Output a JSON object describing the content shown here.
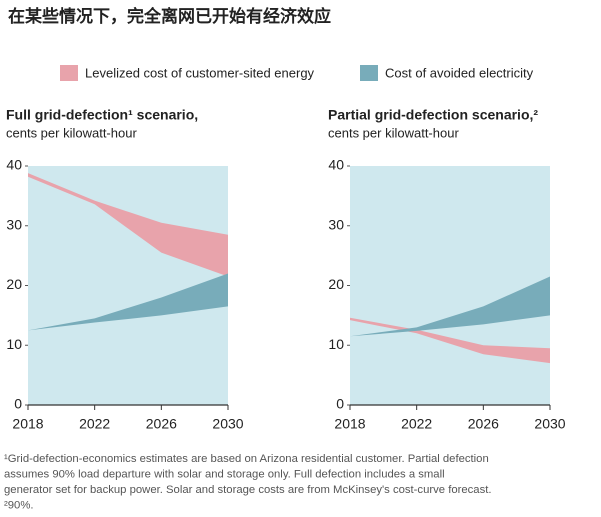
{
  "header": {
    "title": "在某些情况下，完全离网已开始有经济效应"
  },
  "chart_data": [
    {
      "type": "band",
      "title": "Full grid-defection¹ scenario,",
      "subtitle": "cents per kilowatt-hour",
      "x": [
        2018,
        2022,
        2026,
        2030
      ],
      "xlim": [
        2018,
        2030
      ],
      "xticks": [
        2018,
        2022,
        2026,
        2030
      ],
      "ylim": [
        0,
        40
      ],
      "yticks": [
        0,
        10,
        20,
        30,
        40
      ],
      "series": [
        {
          "name": "Levelized cost of customer-sited energy",
          "color": "#e8a3ab",
          "low": [
            38.2,
            33.6,
            25.5,
            21.5
          ],
          "high": [
            38.8,
            34.2,
            30.5,
            28.5
          ]
        },
        {
          "name": "Cost of avoided electricity",
          "color": "#78acba",
          "low": [
            12.5,
            13.8,
            15,
            16.5
          ],
          "high": [
            12.5,
            14.5,
            18,
            22
          ]
        }
      ]
    },
    {
      "type": "band",
      "title": "Partial grid-defection scenario,²",
      "subtitle": "cents per kilowatt-hour",
      "x": [
        2018,
        2022,
        2026,
        2030
      ],
      "xlim": [
        2018,
        2030
      ],
      "xticks": [
        2018,
        2022,
        2026,
        2030
      ],
      "ylim": [
        0,
        40
      ],
      "yticks": [
        0,
        10,
        20,
        30,
        40
      ],
      "series": [
        {
          "name": "Levelized cost of customer-sited energy",
          "color": "#e8a3ab",
          "low": [
            14.2,
            12,
            8.5,
            7
          ],
          "high": [
            14.6,
            12.6,
            10,
            9.5
          ]
        },
        {
          "name": "Cost of avoided electricity",
          "color": "#78acba",
          "low": [
            11.5,
            12.4,
            13.5,
            15
          ],
          "high": [
            11.5,
            13,
            16.5,
            21.5
          ]
        }
      ]
    }
  ],
  "footnote": [
    "¹Grid-defection-economics estimates are based on Arizona residential customer. Partial defection",
    "assumes 90% load departure with solar and storage only. Full defection includes a small",
    "generator set for backup power. Solar and storage costs are from McKinsey's cost-curve forecast.",
    "²90%."
  ]
}
